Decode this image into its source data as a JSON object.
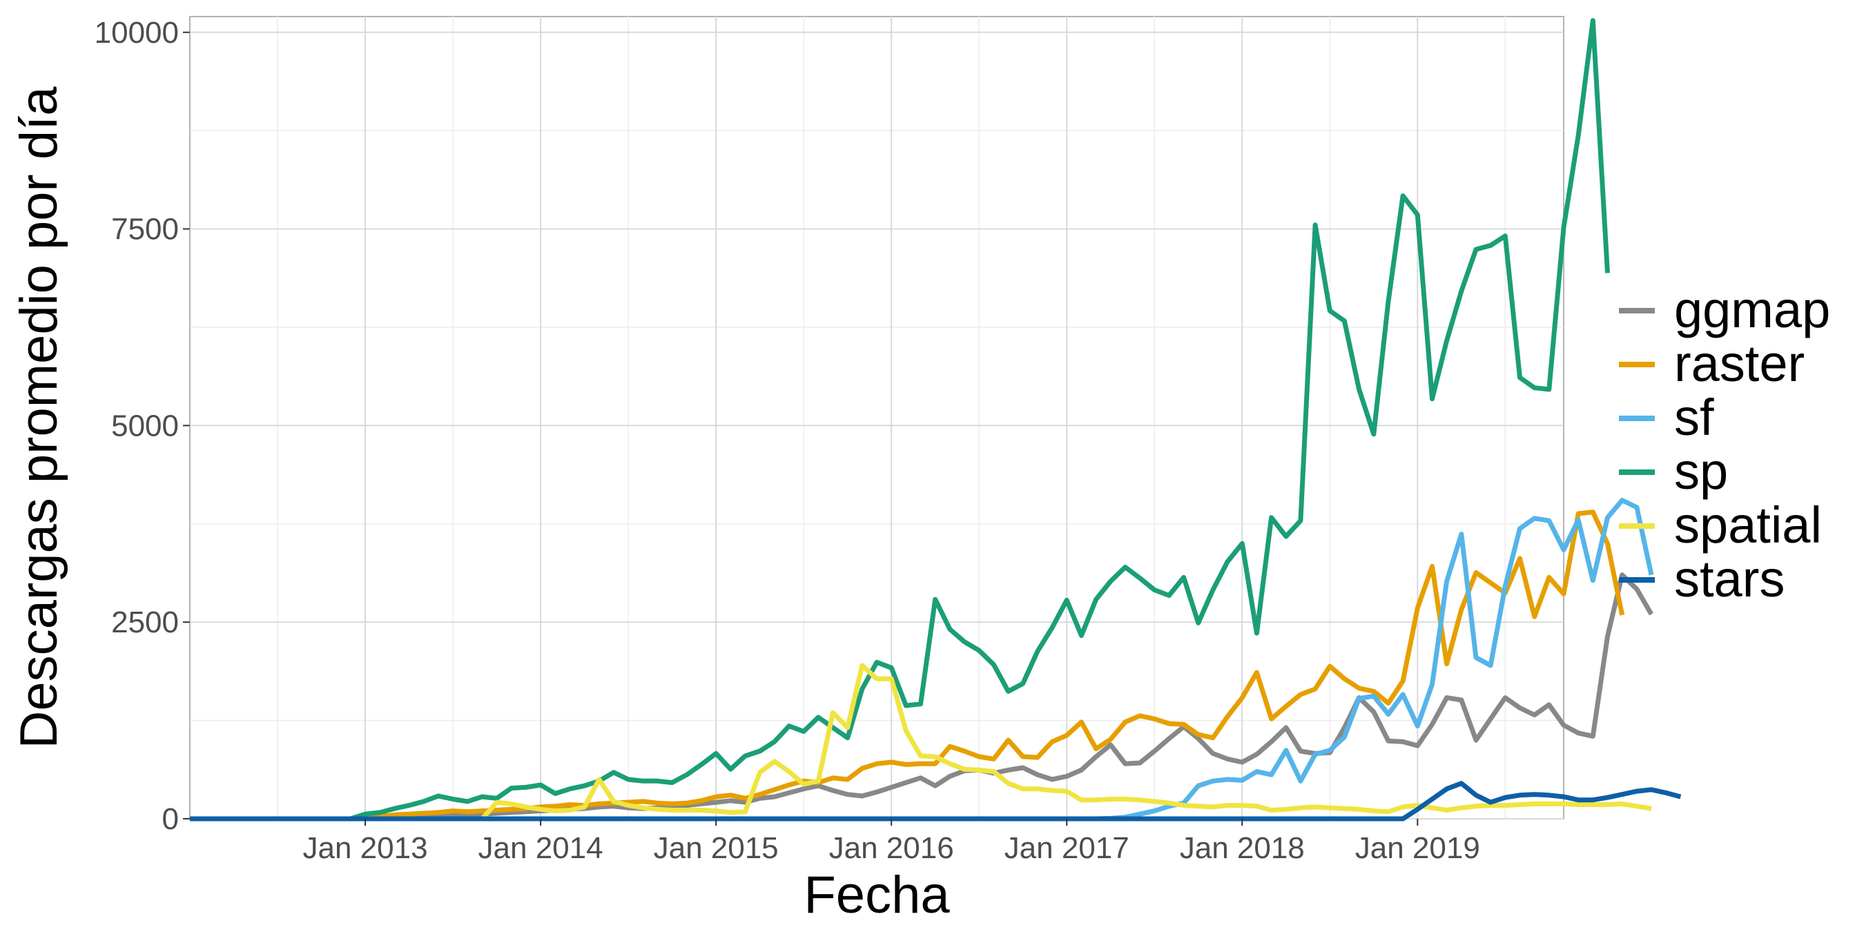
{
  "chart_data": {
    "type": "line",
    "xlabel": "Fecha",
    "ylabel": "Descargas promedio por día",
    "xlim": [
      "2012-01",
      "2019-11"
    ],
    "ylim": [
      0,
      10200
    ],
    "yticks": [
      0,
      2500,
      5000,
      7500,
      10000
    ],
    "xticks": [
      {
        "date": "2013-01",
        "label": "Jan 2013"
      },
      {
        "date": "2014-01",
        "label": "Jan 2014"
      },
      {
        "date": "2015-01",
        "label": "Jan 2015"
      },
      {
        "date": "2016-01",
        "label": "Jan 2016"
      },
      {
        "date": "2017-01",
        "label": "Jan 2017"
      },
      {
        "date": "2018-01",
        "label": "Jan 2018"
      },
      {
        "date": "2019-01",
        "label": "Jan 2019"
      }
    ],
    "grid": true,
    "legend_position": "right",
    "x_start": "2012-01",
    "series": [
      {
        "name": "ggmap",
        "color": "#888888",
        "values": [
          0,
          0,
          0,
          0,
          0,
          0,
          0,
          0,
          0,
          0,
          0,
          0,
          5,
          10,
          15,
          20,
          25,
          30,
          40,
          50,
          60,
          70,
          80,
          90,
          100,
          110,
          120,
          130,
          150,
          160,
          140,
          130,
          140,
          150,
          170,
          190,
          210,
          230,
          210,
          260,
          280,
          330,
          380,
          420,
          360,
          310,
          290,
          340,
          400,
          460,
          520,
          420,
          540,
          610,
          620,
          580,
          620,
          650,
          560,
          500,
          540,
          620,
          790,
          940,
          700,
          710,
          860,
          1020,
          1170,
          1020,
          830,
          760,
          720,
          820,
          980,
          1160,
          860,
          830,
          840,
          1160,
          1540,
          1360,
          990,
          980,
          930,
          1200,
          1540,
          1510,
          1000,
          1270,
          1540,
          1410,
          1320,
          1450,
          1190,
          1090,
          1050,
          2320,
          3100,
          2920,
          2600
        ]
      },
      {
        "name": "raster",
        "color": "#E69F00",
        "values": [
          0,
          0,
          0,
          0,
          0,
          0,
          0,
          0,
          0,
          0,
          0,
          0,
          20,
          30,
          50,
          60,
          70,
          80,
          100,
          90,
          100,
          110,
          120,
          130,
          150,
          160,
          180,
          170,
          190,
          200,
          210,
          220,
          200,
          190,
          200,
          230,
          280,
          300,
          260,
          310,
          370,
          430,
          480,
          460,
          520,
          500,
          640,
          700,
          720,
          690,
          700,
          700,
          920,
          860,
          790,
          760,
          1000,
          790,
          780,
          980,
          1060,
          1230,
          890,
          1010,
          1230,
          1310,
          1270,
          1210,
          1200,
          1070,
          1030,
          1300,
          1540,
          1860,
          1270,
          1430,
          1580,
          1650,
          1940,
          1780,
          1660,
          1620,
          1470,
          1750,
          2680,
          3210,
          1970,
          2660,
          3130,
          3000,
          2870,
          3310,
          2570,
          3070,
          2860,
          3880,
          3900,
          3500,
          2590
        ]
      },
      {
        "name": "sf",
        "color": "#56B4E9",
        "values": [
          0,
          0,
          0,
          0,
          0,
          0,
          0,
          0,
          0,
          0,
          0,
          0,
          0,
          0,
          0,
          0,
          0,
          0,
          0,
          0,
          0,
          0,
          0,
          0,
          0,
          0,
          0,
          0,
          0,
          0,
          0,
          0,
          0,
          0,
          0,
          0,
          0,
          0,
          0,
          0,
          0,
          0,
          0,
          0,
          0,
          0,
          0,
          0,
          0,
          0,
          0,
          0,
          0,
          0,
          0,
          0,
          0,
          0,
          0,
          0,
          0,
          0,
          0,
          5,
          20,
          60,
          100,
          160,
          200,
          420,
          480,
          500,
          490,
          600,
          560,
          870,
          480,
          820,
          870,
          1040,
          1530,
          1560,
          1330,
          1580,
          1180,
          1710,
          3020,
          3620,
          2050,
          1950,
          2960,
          3690,
          3820,
          3790,
          3420,
          3800,
          3030,
          3830,
          4050,
          3960,
          3100
        ]
      },
      {
        "name": "sp",
        "color": "#1B9E77",
        "values": [
          0,
          0,
          0,
          0,
          0,
          0,
          0,
          0,
          0,
          0,
          0,
          0,
          60,
          80,
          130,
          170,
          220,
          290,
          250,
          220,
          280,
          260,
          390,
          400,
          430,
          320,
          380,
          420,
          480,
          590,
          500,
          480,
          480,
          460,
          560,
          690,
          830,
          630,
          800,
          860,
          980,
          1180,
          1110,
          1290,
          1160,
          1030,
          1650,
          1990,
          1920,
          1440,
          1460,
          2790,
          2410,
          2250,
          2140,
          1960,
          1620,
          1720,
          2130,
          2430,
          2780,
          2330,
          2790,
          3020,
          3200,
          3060,
          2910,
          2840,
          3070,
          2490,
          2910,
          3270,
          3500,
          2360,
          3830,
          3590,
          3790,
          7550,
          6460,
          6330,
          5460,
          4890,
          6580,
          7920,
          7680,
          5340,
          6080,
          6710,
          7240,
          7290,
          7410,
          5610,
          5480,
          5460,
          7520,
          8690,
          10150,
          6940
        ]
      },
      {
        "name": "spatial",
        "color": "#F0E442",
        "values": [
          0,
          0,
          0,
          0,
          0,
          0,
          0,
          0,
          0,
          0,
          0,
          0,
          0,
          0,
          0,
          0,
          0,
          0,
          0,
          0,
          0,
          210,
          190,
          150,
          120,
          100,
          110,
          150,
          500,
          220,
          170,
          140,
          120,
          110,
          110,
          110,
          100,
          80,
          90,
          590,
          730,
          600,
          440,
          480,
          1350,
          1160,
          1950,
          1780,
          1780,
          1120,
          800,
          790,
          700,
          630,
          620,
          600,
          450,
          380,
          380,
          360,
          350,
          240,
          240,
          250,
          250,
          240,
          220,
          200,
          170,
          160,
          150,
          170,
          170,
          160,
          110,
          120,
          140,
          150,
          140,
          130,
          120,
          100,
          90,
          150,
          170,
          140,
          110,
          140,
          160,
          170,
          170,
          180,
          190,
          190,
          190,
          180,
          180,
          180,
          190,
          160,
          130
        ]
      },
      {
        "name": "stars",
        "color": "#0D5FA6",
        "values": [
          0,
          0,
          0,
          0,
          0,
          0,
          0,
          0,
          0,
          0,
          0,
          0,
          0,
          0,
          0,
          0,
          0,
          0,
          0,
          0,
          0,
          0,
          0,
          0,
          0,
          0,
          0,
          0,
          0,
          0,
          0,
          0,
          0,
          0,
          0,
          0,
          0,
          0,
          0,
          0,
          0,
          0,
          0,
          0,
          0,
          0,
          0,
          0,
          0,
          0,
          0,
          0,
          0,
          0,
          0,
          0,
          0,
          0,
          0,
          0,
          0,
          0,
          0,
          0,
          0,
          0,
          0,
          0,
          0,
          0,
          0,
          0,
          0,
          0,
          0,
          0,
          0,
          0,
          0,
          0,
          0,
          0,
          0,
          0,
          120,
          250,
          380,
          450,
          300,
          210,
          270,
          300,
          310,
          300,
          280,
          240,
          240,
          270,
          310,
          350,
          370,
          330,
          280
        ]
      }
    ]
  }
}
